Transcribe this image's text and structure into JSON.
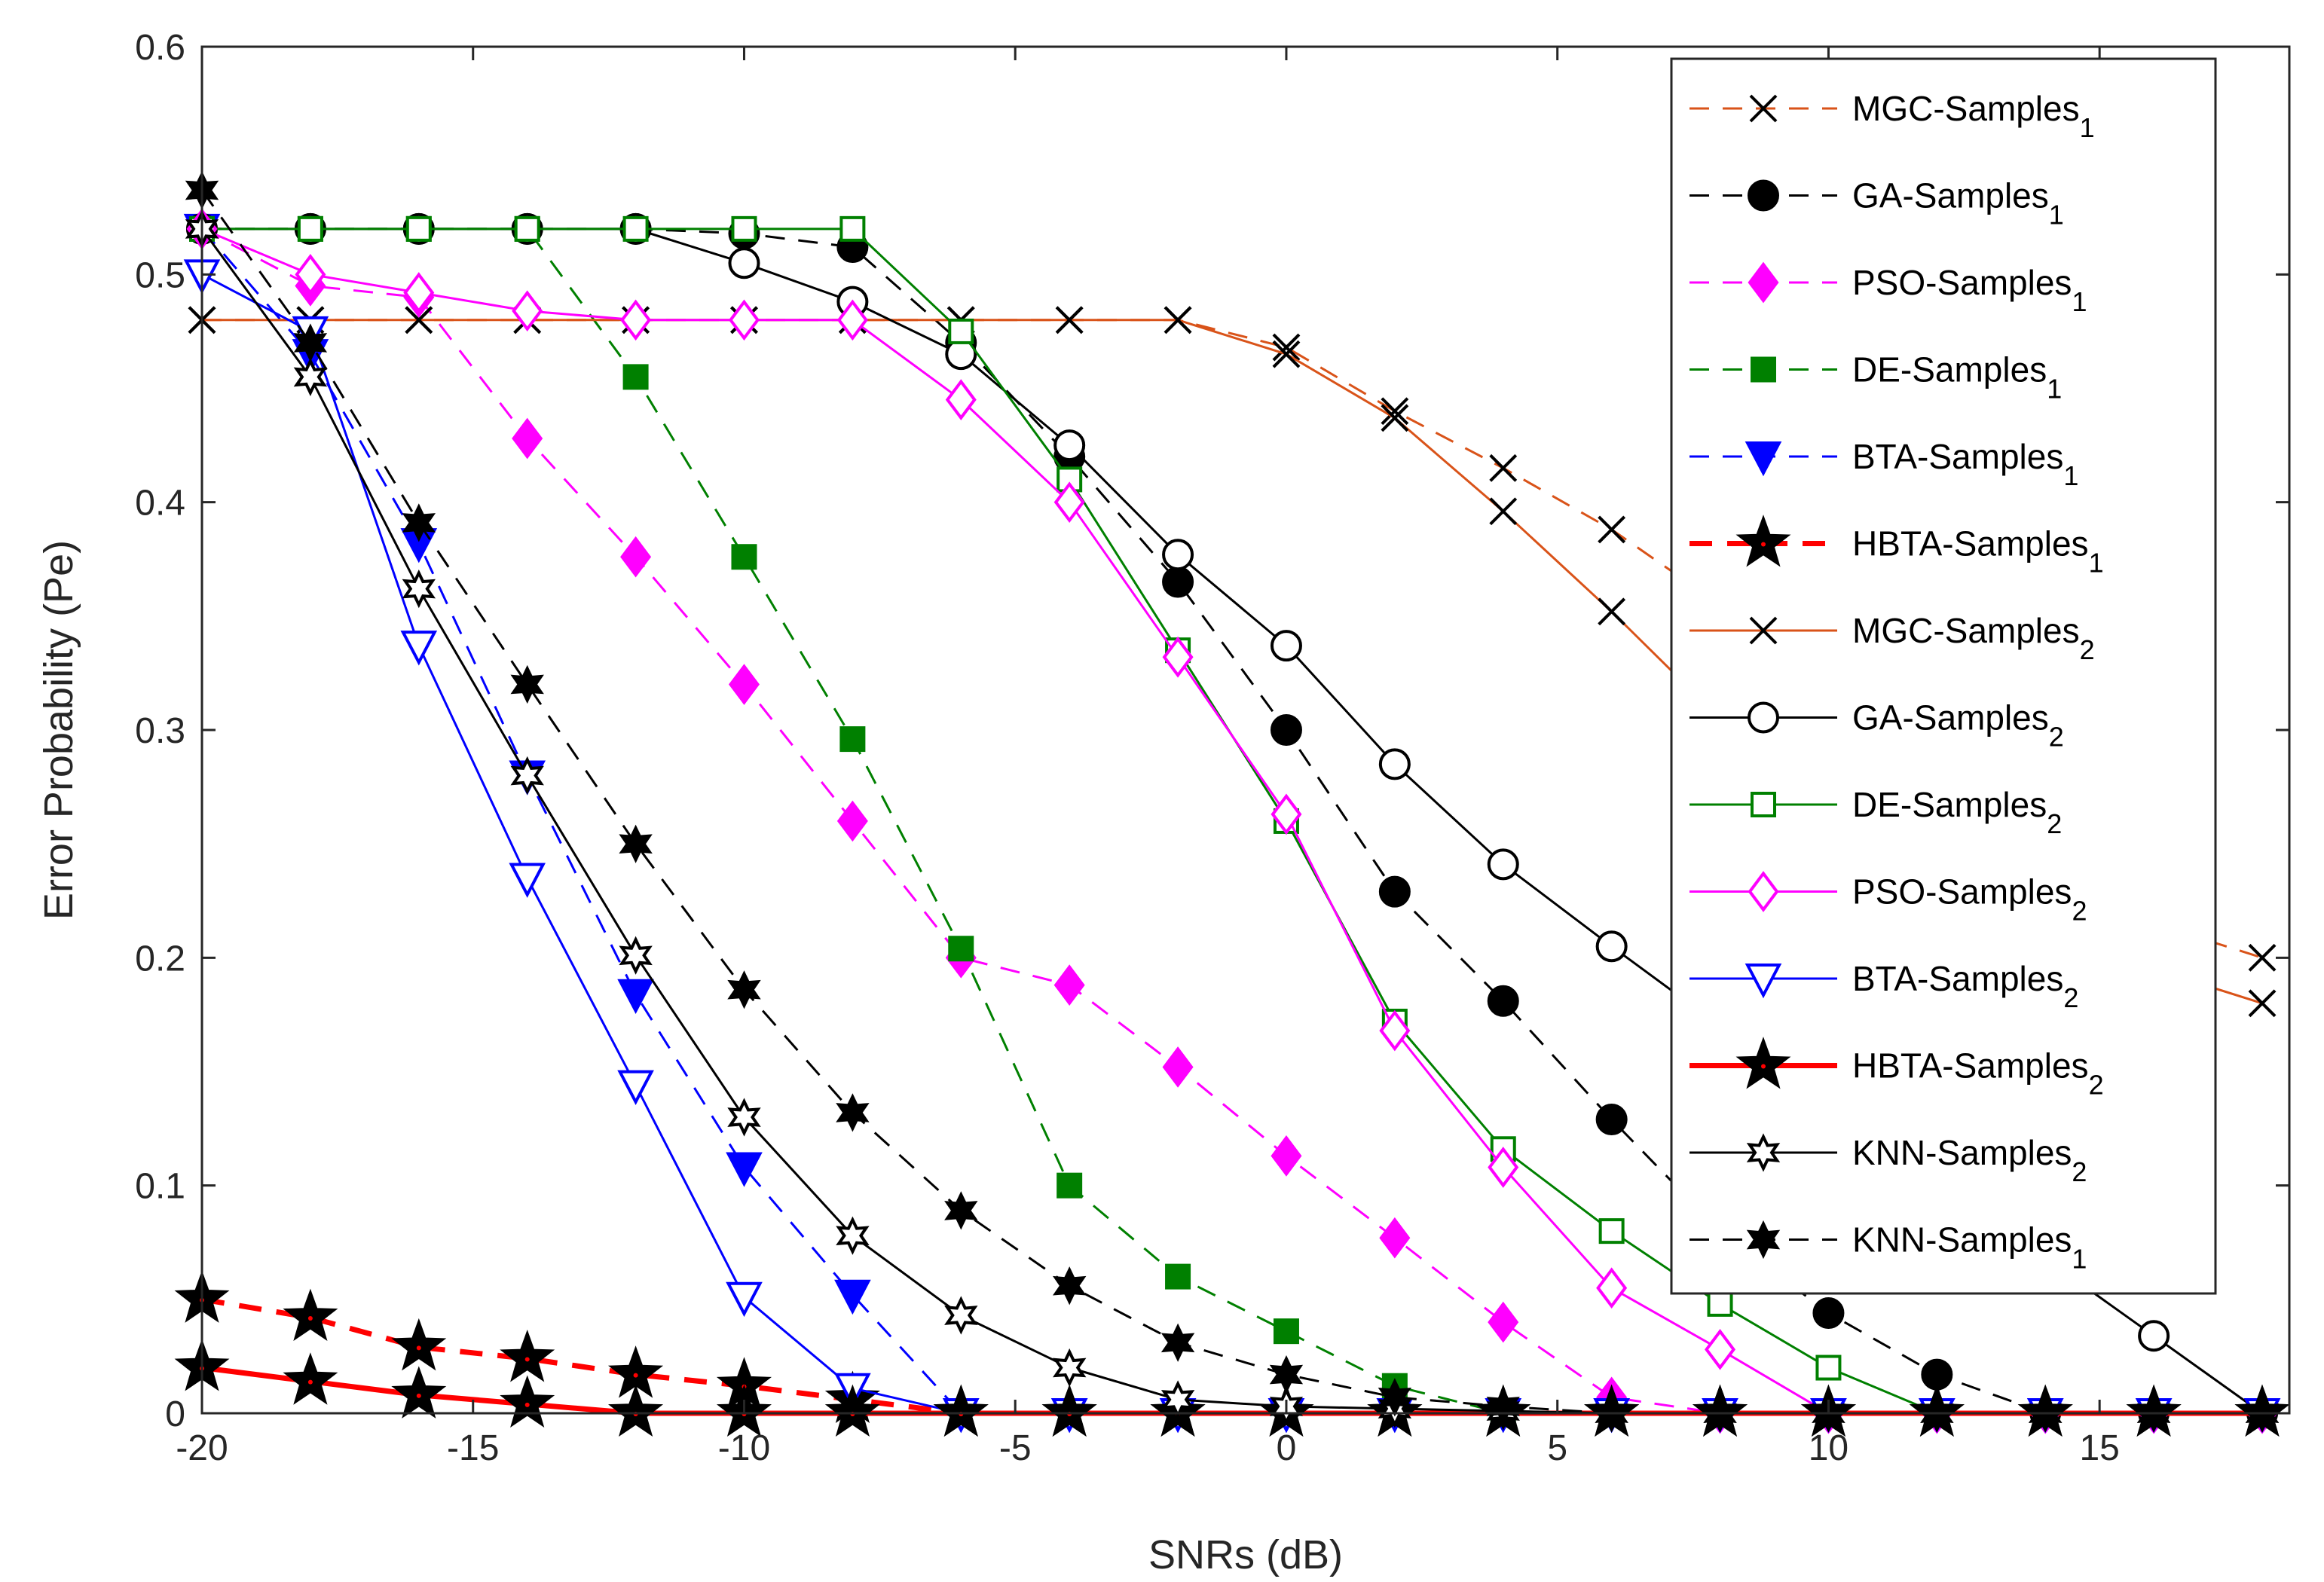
{
  "chart_data": {
    "type": "line",
    "title": "",
    "xlabel": "SNRs (dB)",
    "ylabel": "Error Probability (Pe)",
    "xlim": [
      -20,
      18.5
    ],
    "ylim": [
      0,
      0.6
    ],
    "xticks": [
      -20,
      -15,
      -10,
      -5,
      0,
      5,
      10,
      15
    ],
    "yticks": [
      0,
      0.1,
      0.2,
      0.3,
      0.4,
      0.5,
      0.6
    ],
    "xtick_labels": [
      "-20",
      "-15",
      "-10",
      "-5",
      "0",
      "5",
      "10",
      "15"
    ],
    "ytick_labels": [
      "0",
      "0.1",
      "0.2",
      "0.3",
      "0.4",
      "0.5",
      "0.6"
    ],
    "grid": false,
    "legend_position": "top-right",
    "x": [
      -20,
      -18,
      -16,
      -14,
      -12,
      -10,
      -8,
      -6,
      -4,
      -2,
      0,
      2,
      4,
      6,
      8,
      10,
      12,
      14,
      16,
      18
    ],
    "series": [
      {
        "name": "MGC-Samples",
        "subscript": "1",
        "color": "#d95319",
        "dash": "dashed",
        "marker": "x",
        "filled": false,
        "width": 3,
        "values": [
          0.48,
          0.48,
          0.48,
          0.48,
          0.48,
          0.48,
          0.48,
          0.48,
          0.48,
          0.48,
          0.468,
          0.44,
          0.415,
          0.388,
          0.355,
          0.318,
          0.28,
          0.245,
          0.215,
          0.2
        ]
      },
      {
        "name": "GA-Samples",
        "subscript": "1",
        "color": "#000000",
        "dash": "dashed",
        "marker": "circle",
        "filled": true,
        "width": 3,
        "values": [
          0.52,
          0.52,
          0.52,
          0.52,
          0.52,
          0.518,
          0.512,
          0.47,
          0.42,
          0.365,
          0.3,
          0.229,
          0.181,
          0.129,
          0.08,
          0.044,
          0.017,
          0.0,
          0.0,
          0.0
        ]
      },
      {
        "name": "PSO-Samples",
        "subscript": "1",
        "color": "#ff00ff",
        "dash": "dashed",
        "marker": "diamond",
        "filled": true,
        "width": 3,
        "values": [
          0.52,
          0.495,
          0.49,
          0.428,
          0.376,
          0.32,
          0.26,
          0.2,
          0.188,
          0.152,
          0.113,
          0.077,
          0.04,
          0.007,
          0.0,
          0.0,
          0.0,
          0.0,
          0.0,
          0.0
        ]
      },
      {
        "name": "DE-Samples",
        "subscript": "1",
        "color": "#008000",
        "dash": "dashed",
        "marker": "square",
        "filled": true,
        "width": 3,
        "values": [
          0.52,
          0.52,
          0.52,
          0.52,
          0.455,
          0.376,
          0.296,
          0.204,
          0.1,
          0.06,
          0.036,
          0.012,
          0.0,
          0.0,
          0.0,
          0.0,
          0.0,
          0.0,
          0.0,
          0.0
        ]
      },
      {
        "name": "BTA-Samples",
        "subscript": "1",
        "color": "#0000ff",
        "dash": "dashed",
        "marker": "triangle-down",
        "filled": true,
        "width": 3,
        "values": [
          0.52,
          0.465,
          0.382,
          0.28,
          0.184,
          0.108,
          0.052,
          0.0,
          0.0,
          0.0,
          0.0,
          0.0,
          0.0,
          0.0,
          0.0,
          0.0,
          0.0,
          0.0,
          0.0,
          0.0
        ]
      },
      {
        "name": "HBTA-Samples",
        "subscript": "1",
        "color": "#ff0000",
        "dash": "dashed",
        "marker": "star-big",
        "filled": true,
        "width": 7,
        "values": [
          0.05,
          0.042,
          0.029,
          0.024,
          0.017,
          0.012,
          0.006,
          0.0,
          0.0,
          0.0,
          0.0,
          0.0,
          0.0,
          0.0,
          0.0,
          0.0,
          0.0,
          0.0,
          0.0,
          0.0
        ]
      },
      {
        "name": "MGC-Samples",
        "subscript": "2",
        "color": "#d95319",
        "dash": "solid",
        "marker": "x",
        "filled": false,
        "width": 3,
        "values": [
          0.48,
          0.48,
          0.48,
          0.48,
          0.48,
          0.48,
          0.48,
          0.48,
          0.48,
          0.48,
          0.465,
          0.437,
          0.396,
          0.352,
          0.305,
          0.27,
          0.24,
          0.215,
          0.195,
          0.18
        ]
      },
      {
        "name": "GA-Samples",
        "subscript": "2",
        "color": "#000000",
        "dash": "solid",
        "marker": "circle",
        "filled": false,
        "width": 3,
        "values": [
          0.52,
          0.52,
          0.52,
          0.52,
          0.52,
          0.505,
          0.488,
          0.465,
          0.425,
          0.377,
          0.337,
          0.285,
          0.241,
          0.205,
          0.17,
          0.14,
          0.1,
          0.068,
          0.034,
          0.0
        ]
      },
      {
        "name": "DE-Samples",
        "subscript": "2",
        "color": "#008000",
        "dash": "solid",
        "marker": "square",
        "filled": false,
        "width": 3,
        "values": [
          0.52,
          0.52,
          0.52,
          0.52,
          0.52,
          0.52,
          0.52,
          0.475,
          0.41,
          0.335,
          0.26,
          0.172,
          0.116,
          0.08,
          0.048,
          0.02,
          0.0,
          0.0,
          0.0,
          0.0
        ]
      },
      {
        "name": "PSO-Samples",
        "subscript": "2",
        "color": "#ff00ff",
        "dash": "solid",
        "marker": "diamond",
        "filled": false,
        "width": 3,
        "values": [
          0.52,
          0.5,
          0.492,
          0.484,
          0.48,
          0.48,
          0.48,
          0.445,
          0.4,
          0.332,
          0.263,
          0.168,
          0.108,
          0.055,
          0.028,
          0.0,
          0.0,
          0.0,
          0.0,
          0.0
        ]
      },
      {
        "name": "BTA-Samples",
        "subscript": "2",
        "color": "#0000ff",
        "dash": "solid",
        "marker": "triangle-down",
        "filled": false,
        "width": 3,
        "values": [
          0.5,
          0.475,
          0.337,
          0.235,
          0.144,
          0.051,
          0.011,
          0.0,
          0.0,
          0.0,
          0.0,
          0.0,
          0.0,
          0.0,
          0.0,
          0.0,
          0.0,
          0.0,
          0.0,
          0.0
        ]
      },
      {
        "name": "HBTA-Samples",
        "subscript": "2",
        "color": "#ff0000",
        "dash": "solid",
        "marker": "star-big",
        "filled": true,
        "width": 7,
        "values": [
          0.02,
          0.014,
          0.008,
          0.004,
          0.0,
          0.0,
          0.0,
          0.0,
          0.0,
          0.0,
          0.0,
          0.0,
          0.0,
          0.0,
          0.0,
          0.0,
          0.0,
          0.0,
          0.0,
          0.0
        ]
      },
      {
        "name": "KNN-Samples",
        "subscript": "2",
        "color": "#000000",
        "dash": "solid",
        "marker": "hexagram",
        "filled": false,
        "width": 3,
        "values": [
          0.52,
          0.455,
          0.362,
          0.28,
          0.201,
          0.13,
          0.078,
          0.043,
          0.02,
          0.006,
          0.003,
          0.002,
          0.001,
          0.0,
          0.0,
          0.0,
          0.0,
          0.0,
          0.0,
          0.0
        ]
      },
      {
        "name": "KNN-Samples",
        "subscript": "1",
        "color": "#000000",
        "dash": "dashed",
        "marker": "hexagram",
        "filled": true,
        "width": 3,
        "values": [
          0.537,
          0.47,
          0.391,
          0.32,
          0.25,
          0.186,
          0.132,
          0.089,
          0.056,
          0.031,
          0.017,
          0.007,
          0.003,
          0.0,
          0.0,
          0.0,
          0.0,
          0.0,
          0.0,
          0.0
        ]
      }
    ]
  }
}
